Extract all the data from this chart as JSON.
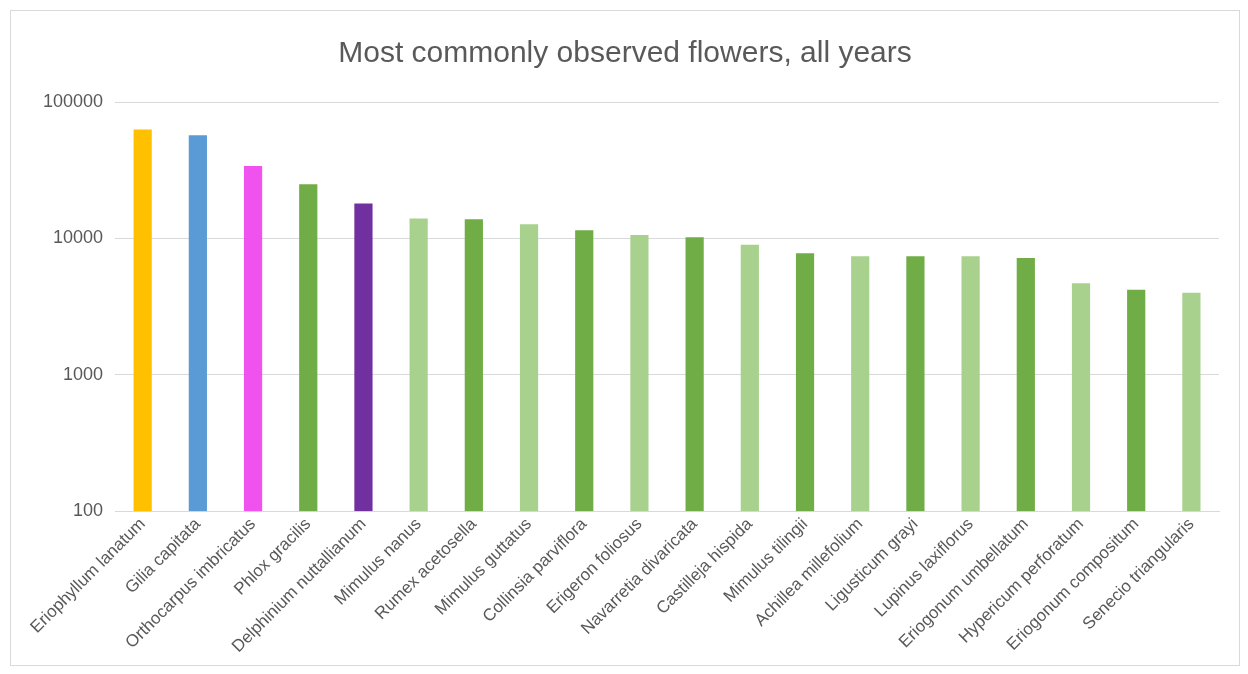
{
  "chart_data": {
    "type": "bar",
    "title": "Most commonly observed flowers, all years",
    "categories": [
      "Eriophyllum lanatum",
      "Gilia capitata",
      "Orthocarpus imbricatus",
      "Phlox gracilis",
      "Delphinium nuttallianum",
      "Mimulus nanus",
      "Rumex acetosella",
      "Mimulus guttatus",
      "Collinsia parviflora",
      "Erigeron foliosus",
      "Navarretia divaricata",
      "Castilleja hispida",
      "Mimulus tilingii",
      "Achillea millefolium",
      "Ligusticum grayi",
      "Lupinus laxiflorus",
      "Eriogonum umbellatum",
      "Hypericum perforatum",
      "Eriogonum compositum",
      "Senecio triangularis"
    ],
    "values": [
      63000,
      57000,
      34000,
      25000,
      18000,
      14000,
      13800,
      12700,
      11500,
      10600,
      10200,
      9000,
      7800,
      7400,
      7400,
      7400,
      7200,
      4700,
      4200,
      4000
    ],
    "colors": [
      "#ffc000",
      "#5b9bd5",
      "#f052f0",
      "#70ad47",
      "#7030a0",
      "#a9d18e",
      "#70ad47",
      "#a9d18e",
      "#70ad47",
      "#a9d18e",
      "#70ad47",
      "#a9d18e",
      "#70ad47",
      "#a9d18e",
      "#70ad47",
      "#a9d18e",
      "#70ad47",
      "#a9d18e",
      "#70ad47",
      "#a9d18e"
    ],
    "log": "y",
    "ylim": [
      100,
      100000
    ],
    "yticks": [
      100,
      1000,
      10000,
      100000
    ],
    "grid": "y",
    "legend": false
  }
}
